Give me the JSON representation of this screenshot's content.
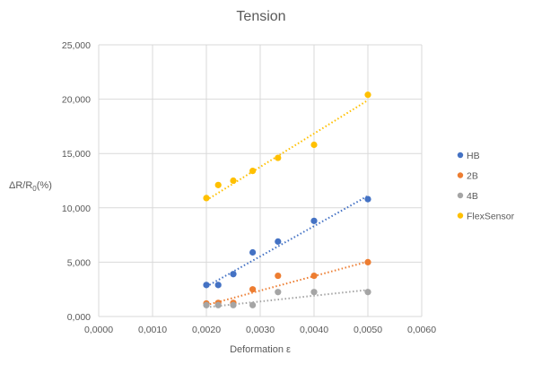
{
  "chart_data": {
    "type": "scatter",
    "title": "Tension",
    "xlabel": "Deformation ε",
    "ylabel_main": "ΔR/R",
    "ylabel_sub": "0",
    "ylabel_tail": "(%)",
    "xlim": [
      0,
      0.006
    ],
    "ylim": [
      0,
      25000
    ],
    "x_ticks": [
      0,
      0.001,
      0.002,
      0.003,
      0.004,
      0.005,
      0.006
    ],
    "x_tick_labels": [
      "0,0000",
      "0,0010",
      "0,0020",
      "0,0030",
      "0,0040",
      "0,0050",
      "0,0060"
    ],
    "y_ticks": [
      0,
      5000,
      10000,
      15000,
      20000,
      25000
    ],
    "y_tick_labels": [
      "0,000",
      "5,000",
      "10,000",
      "15,000",
      "20,000",
      "25,000"
    ],
    "grid": true,
    "legend_position": "right",
    "trendlines": "linear, dotted",
    "series": [
      {
        "name": "HB",
        "color": "#4472c4",
        "points": [
          [
            0.002,
            2900
          ],
          [
            0.00222,
            2900
          ],
          [
            0.0025,
            3900
          ],
          [
            0.00286,
            5900
          ],
          [
            0.00333,
            6900
          ],
          [
            0.004,
            8800
          ],
          [
            0.005,
            10800
          ]
        ],
        "trend": [
          [
            0.002,
            2750
          ],
          [
            0.005,
            11100
          ]
        ]
      },
      {
        "name": "2B",
        "color": "#ed7d31",
        "points": [
          [
            0.002,
            1200
          ],
          [
            0.00222,
            1250
          ],
          [
            0.0025,
            1250
          ],
          [
            0.00286,
            2500
          ],
          [
            0.00333,
            3750
          ],
          [
            0.004,
            3750
          ],
          [
            0.005,
            5000
          ]
        ],
        "trend": [
          [
            0.002,
            1050
          ],
          [
            0.005,
            5050
          ]
        ]
      },
      {
        "name": "4B",
        "color": "#a5a5a5",
        "points": [
          [
            0.002,
            1050
          ],
          [
            0.00222,
            1050
          ],
          [
            0.0025,
            1050
          ],
          [
            0.00286,
            1050
          ],
          [
            0.00333,
            2250
          ],
          [
            0.004,
            2250
          ],
          [
            0.005,
            2250
          ]
        ],
        "trend": [
          [
            0.002,
            850
          ],
          [
            0.005,
            2450
          ]
        ]
      },
      {
        "name": "FlexSensor",
        "color": "#ffc000",
        "points": [
          [
            0.002,
            10900
          ],
          [
            0.00222,
            12100
          ],
          [
            0.0025,
            12500
          ],
          [
            0.00286,
            13400
          ],
          [
            0.00333,
            14600
          ],
          [
            0.004,
            15800
          ],
          [
            0.005,
            20400
          ]
        ],
        "trend": [
          [
            0.002,
            10700
          ],
          [
            0.005,
            19900
          ]
        ]
      }
    ]
  }
}
